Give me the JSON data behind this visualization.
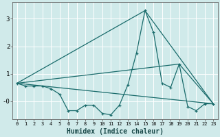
{
  "xlabel": "Humidex (Indice chaleur)",
  "bg_color": "#d0eaea",
  "grid_color": "#ffffff",
  "line_color": "#1a6b6b",
  "xlim": [
    -0.5,
    23.5
  ],
  "ylim": [
    -0.65,
    3.6
  ],
  "yticks": [
    3,
    2,
    1,
    0
  ],
  "ytick_labels": [
    "3",
    "2",
    "1",
    "-0"
  ],
  "series1_x": [
    0,
    1,
    2,
    3,
    4,
    5,
    6,
    7,
    8,
    9,
    10,
    11,
    12,
    13,
    14,
    15,
    16,
    17,
    18,
    19,
    20,
    21,
    22,
    23
  ],
  "series1_y": [
    0.65,
    0.55,
    0.55,
    0.55,
    0.45,
    0.25,
    -0.35,
    -0.35,
    -0.15,
    -0.15,
    -0.45,
    -0.5,
    -0.15,
    0.6,
    1.75,
    3.3,
    2.5,
    0.65,
    0.5,
    1.35,
    -0.2,
    -0.35,
    -0.1,
    -0.1
  ],
  "series2_x": [
    0,
    23
  ],
  "series2_y": [
    0.65,
    -0.1
  ],
  "series3_x": [
    0,
    15,
    23
  ],
  "series3_y": [
    0.65,
    3.3,
    -0.1
  ],
  "series4_x": [
    0,
    19,
    23
  ],
  "series4_y": [
    0.65,
    1.35,
    -0.1
  ],
  "xtick_fontsize": 5.0,
  "ytick_fontsize": 6.5,
  "xlabel_fontsize": 7.0
}
